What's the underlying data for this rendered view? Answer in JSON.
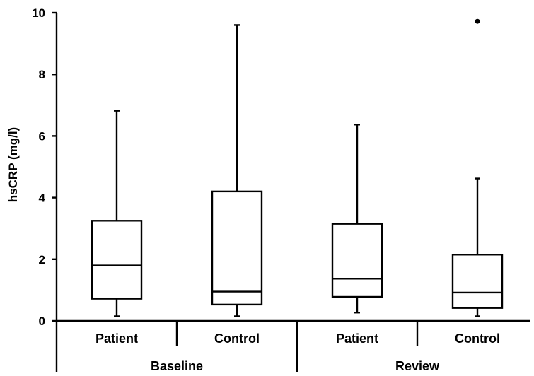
{
  "chart_data": {
    "type": "box",
    "ylabel": "hsCRP (mg/l)",
    "ylim": [
      0,
      10
    ],
    "yticks": [
      "0",
      "2",
      "4",
      "6",
      "8",
      "10"
    ],
    "groups": [
      {
        "label": "Baseline",
        "categories": [
          {
            "label": "Patient",
            "min": 0.15,
            "q1": 0.72,
            "median": 1.8,
            "q3": 3.25,
            "max": 6.82,
            "outliers": []
          },
          {
            "label": "Control",
            "min": 0.15,
            "q1": 0.53,
            "median": 0.95,
            "q3": 4.2,
            "max": 9.6,
            "outliers": []
          }
        ]
      },
      {
        "label": "Review",
        "categories": [
          {
            "label": "Patient",
            "min": 0.27,
            "q1": 0.78,
            "median": 1.37,
            "q3": 3.15,
            "max": 6.37,
            "outliers": []
          },
          {
            "label": "Control",
            "min": 0.15,
            "q1": 0.42,
            "median": 0.92,
            "q3": 2.15,
            "max": 4.62,
            "outliers": [
              9.72
            ]
          }
        ]
      }
    ]
  }
}
